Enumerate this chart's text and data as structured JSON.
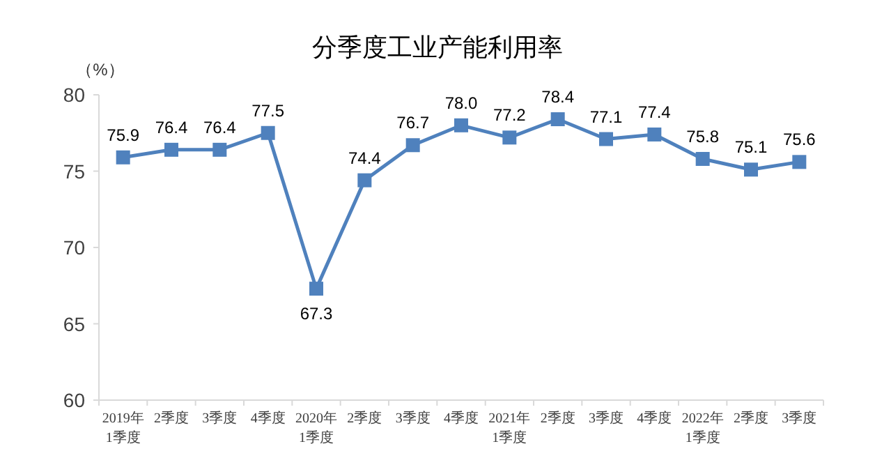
{
  "chart_data": {
    "type": "line",
    "title": "分季度工业产能利用率",
    "ylabel": "（%）",
    "categories": [
      "2019年\n1季度",
      "2季度",
      "3季度",
      "4季度",
      "2020年\n1季度",
      "2季度",
      "3季度",
      "4季度",
      "2021年\n1季度",
      "2季度",
      "3季度",
      "4季度",
      "2022年\n1季度",
      "2季度",
      "3季度"
    ],
    "series": [
      {
        "color": "#4f81bd",
        "values": [
          75.9,
          76.4,
          76.4,
          77.5,
          67.3,
          74.4,
          76.7,
          78.0,
          77.2,
          78.4,
          77.1,
          77.4,
          75.8,
          75.1,
          75.6
        ],
        "value_labels": [
          "75.9",
          "76.4",
          "76.4",
          "77.5",
          "67.3",
          "74.4",
          "76.7",
          "78.0",
          "77.2",
          "78.4",
          "77.1",
          "77.4",
          "75.8",
          "75.1",
          "75.6"
        ]
      }
    ],
    "ylim": [
      60,
      80
    ],
    "yticks": [
      60,
      65,
      70,
      75,
      80
    ],
    "grid": false,
    "marker": "square",
    "line_style": "solid"
  }
}
